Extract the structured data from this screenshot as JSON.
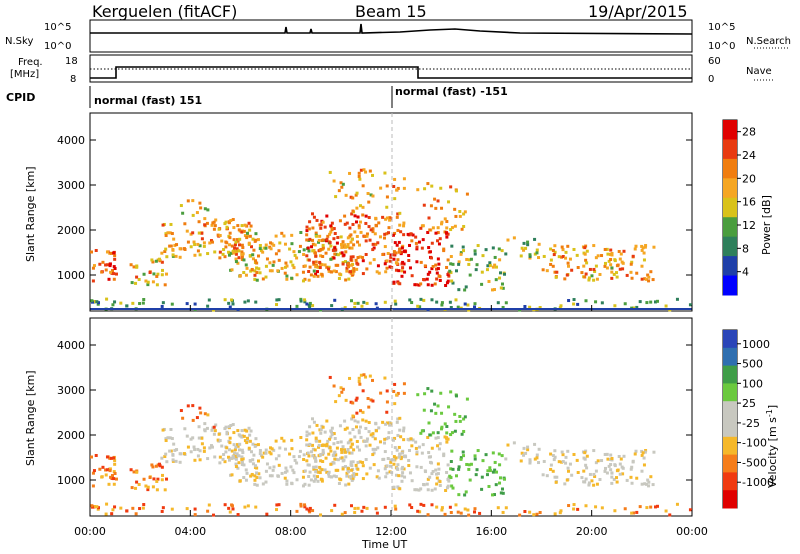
{
  "header": {
    "site": "Kerguelen (fitACF)",
    "beam": "Beam 15",
    "date": "19/Apr/2015"
  },
  "noise_panel": {
    "left_label": "N.Sky",
    "right_label": "N.Search",
    "left_ticks": [
      "10^5",
      "10^0"
    ],
    "right_ticks": [
      "10^5",
      "10^0"
    ]
  },
  "freq_panel": {
    "left_label_1": "Freq.",
    "left_label_2": "[MHz]",
    "right_label": "Nave",
    "left_ticks": [
      "18",
      "8"
    ],
    "right_ticks": [
      "60",
      "0"
    ],
    "cpid_label": "CPID",
    "cpid_segments": [
      "normal (fast) 151",
      "normal (fast) -151"
    ]
  },
  "colors": {
    "power_scale": [
      "#0000ff",
      "#1f3fa8",
      "#2e7f5b",
      "#4a9d3e",
      "#d9c21a",
      "#f5a623",
      "#f07d0f",
      "#e83a10",
      "#e00000"
    ],
    "velocity_scale": [
      "#e00000",
      "#f03a10",
      "#f57d1a",
      "#f5b82a",
      "#c8c8c0",
      "#c8c8c0",
      "#6bc93f",
      "#3f9d48",
      "#2f6fb0",
      "#2a45b8"
    ],
    "ground_scatter": "#c8c8c0"
  },
  "chart_data": [
    {
      "type": "heatmap",
      "name": "power",
      "ylabel": "Slant Range [km]",
      "yticks": [
        "1000",
        "2000",
        "3000",
        "4000"
      ],
      "ylim": [
        200,
        4600
      ],
      "colorbar_label": "Power [dB]",
      "colorbar_ticks": [
        "28",
        "24",
        "20",
        "16",
        "12",
        "8",
        "4"
      ],
      "colorbar_range": [
        0,
        30
      ]
    },
    {
      "type": "heatmap",
      "name": "velocity",
      "ylabel": "Slant Range [km]",
      "yticks": [
        "1000",
        "2000",
        "3000",
        "4000"
      ],
      "ylim": [
        200,
        4600
      ],
      "colorbar_label": "Velocity [m s^-1]",
      "colorbar_ticks": [
        "1000",
        "500",
        "100",
        "25",
        "-25",
        "-100",
        "-500",
        "-1000"
      ],
      "xlabel": "Time UT",
      "xticks": [
        "00:00",
        "04:00",
        "08:00",
        "12:00",
        "16:00",
        "20:00",
        "00:00"
      ],
      "xlim": [
        0,
        24
      ]
    }
  ]
}
